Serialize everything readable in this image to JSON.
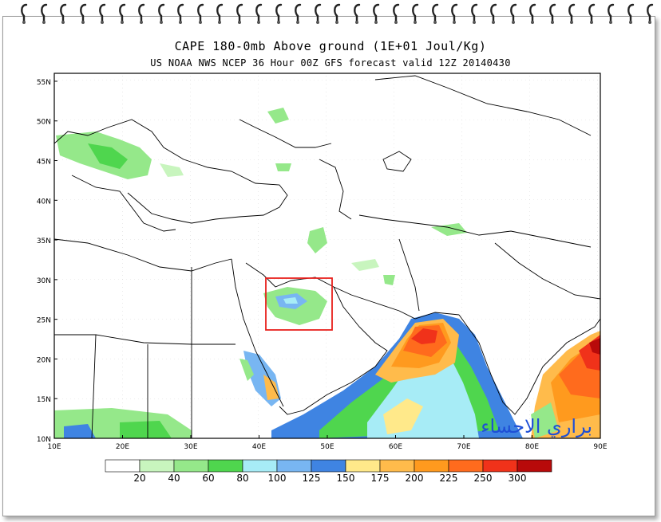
{
  "title": "CAPE 180-0mb Above ground (1E+01 Joul/Kg)",
  "subtitle": "US NOAA NWS NCEP 36 Hour 00Z GFS forecast valid 12Z 20140430",
  "watermark": "براري الاحساء",
  "map": {
    "lon_range": [
      10,
      90
    ],
    "lat_range": [
      10,
      56
    ],
    "lat_ticks": [
      "55N",
      "50N",
      "45N",
      "40N",
      "35N",
      "30N",
      "25N",
      "20N",
      "15N",
      "10N"
    ],
    "lon_ticks": [
      "10E",
      "20E",
      "30E",
      "40E",
      "50E",
      "60E",
      "70E",
      "80E",
      "90E"
    ],
    "highlight_box_color": "#e8201c"
  },
  "legend": {
    "colors": [
      "#ffffff",
      "#c8f5be",
      "#95e88a",
      "#4fd64e",
      "#a7ecf6",
      "#78b6f2",
      "#3f84e2",
      "#ffe98a",
      "#ffbb4b",
      "#ff9a1e",
      "#ff6b1d",
      "#f0321a",
      "#b80a0a"
    ],
    "labels": [
      "20",
      "40",
      "60",
      "80",
      "100",
      "125",
      "150",
      "175",
      "200",
      "225",
      "250",
      "300"
    ]
  }
}
